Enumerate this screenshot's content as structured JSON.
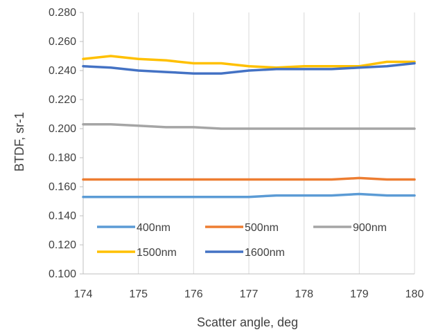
{
  "chart_data": {
    "type": "line",
    "title": "",
    "xlabel": "Scatter angle, deg",
    "ylabel": "BTDF, sr-1",
    "xlim": [
      174,
      180
    ],
    "ylim": [
      0.1,
      0.28
    ],
    "x_ticks": [
      "174",
      "175",
      "176",
      "177",
      "178",
      "179",
      "180"
    ],
    "y_ticks": [
      "0.100",
      "0.120",
      "0.140",
      "0.160",
      "0.180",
      "0.200",
      "0.220",
      "0.240",
      "0.260",
      "0.280"
    ],
    "grid": "vertical major gridlines",
    "legend_position": "inside bottom-left",
    "x": [
      174,
      174.5,
      175,
      175.5,
      176,
      176.5,
      177,
      177.5,
      178,
      178.5,
      179,
      179.5,
      180
    ],
    "series": [
      {
        "name": "400nm",
        "color": "#5B9BD5",
        "values": [
          0.153,
          0.153,
          0.153,
          0.153,
          0.153,
          0.153,
          0.153,
          0.154,
          0.154,
          0.154,
          0.155,
          0.154,
          0.154
        ]
      },
      {
        "name": "500nm",
        "color": "#ED7D31",
        "values": [
          0.165,
          0.165,
          0.165,
          0.165,
          0.165,
          0.165,
          0.165,
          0.165,
          0.165,
          0.165,
          0.166,
          0.165,
          0.165
        ]
      },
      {
        "name": "900nm",
        "color": "#A5A5A5",
        "values": [
          0.203,
          0.203,
          0.202,
          0.201,
          0.201,
          0.2,
          0.2,
          0.2,
          0.2,
          0.2,
          0.2,
          0.2,
          0.2
        ]
      },
      {
        "name": "1500nm",
        "color": "#FFC000",
        "values": [
          0.248,
          0.25,
          0.248,
          0.247,
          0.245,
          0.245,
          0.243,
          0.242,
          0.243,
          0.243,
          0.243,
          0.246,
          0.246
        ]
      },
      {
        "name": "1600nm",
        "color": "#4472C4",
        "values": [
          0.243,
          0.242,
          0.24,
          0.239,
          0.238,
          0.238,
          0.24,
          0.241,
          0.241,
          0.241,
          0.242,
          0.243,
          0.245
        ]
      }
    ]
  }
}
